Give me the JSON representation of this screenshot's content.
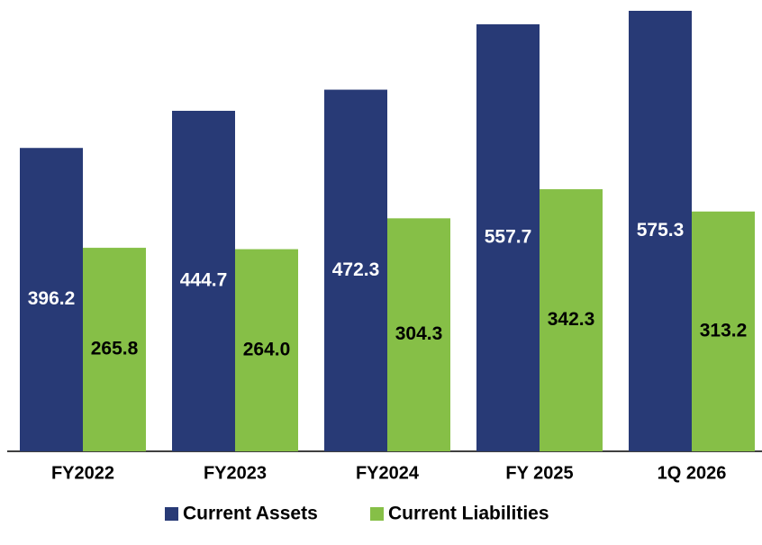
{
  "chart_data": {
    "type": "bar",
    "categories": [
      "FY2022",
      "FY2023",
      "FY2024",
      "FY 2025",
      "1Q 2026"
    ],
    "series": [
      {
        "name": "Current Assets",
        "color": "#283a76",
        "label_color": "#ffffff",
        "values": [
          396.2,
          444.7,
          472.3,
          557.7,
          575.3
        ],
        "value_labels": [
          "396.2",
          "444.7",
          "472.3",
          "557.7",
          "575.3"
        ]
      },
      {
        "name": "Current Liabilities",
        "color": "#86bf47",
        "label_color": "#000000",
        "values": [
          265.8,
          264.0,
          304.3,
          342.3,
          313.2
        ],
        "value_labels": [
          "265.8",
          "264.0",
          "304.3",
          "342.3",
          "313.2"
        ]
      }
    ],
    "legend": "bottom"
  }
}
